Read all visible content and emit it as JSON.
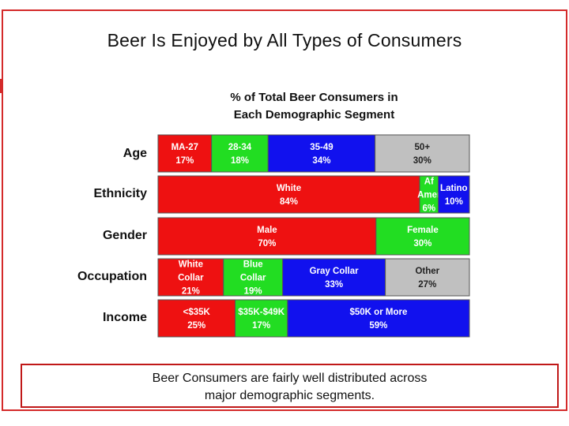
{
  "slide": {
    "title": "Beer Is Enjoyed by All Types of Consumers",
    "note_line1": "Beer Consumers are fairly well distributed across",
    "note_line2": "major demographic segments."
  },
  "colors": {
    "red": "#ee1111",
    "green": "#22dd22",
    "blue": "#1111ee",
    "gray": "#c0c0c0",
    "frame": "#d42a2a"
  },
  "chart_data": {
    "type": "bar",
    "stacking": "stacked-100-percent-horizontal",
    "title_line1": "% of Total Beer Consumers in",
    "title_line2": "Each Demographic Segment",
    "rows": [
      {
        "label": "Age",
        "segments": [
          {
            "lines": [
              "MA-27",
              "17%"
            ],
            "value": 17,
            "color": "red"
          },
          {
            "lines": [
              "28-34",
              "18%"
            ],
            "value": 18,
            "color": "green"
          },
          {
            "lines": [
              "35-49",
              "34%"
            ],
            "value": 34,
            "color": "blue"
          },
          {
            "lines": [
              "50+",
              "30%"
            ],
            "value": 30,
            "color": "gray"
          }
        ]
      },
      {
        "label": "Ethnicity",
        "segments": [
          {
            "lines": [
              "White",
              "84%"
            ],
            "value": 84,
            "color": "red"
          },
          {
            "lines": [
              "Af",
              "Amer",
              "6%"
            ],
            "value": 6,
            "color": "green"
          },
          {
            "lines": [
              "Latino",
              "10%"
            ],
            "value": 10,
            "color": "blue"
          }
        ]
      },
      {
        "label": "Gender",
        "segments": [
          {
            "lines": [
              "Male",
              "70%"
            ],
            "value": 70,
            "color": "red"
          },
          {
            "lines": [
              "Female",
              "30%"
            ],
            "value": 30,
            "color": "green"
          }
        ]
      },
      {
        "label": "Occupation",
        "segments": [
          {
            "lines": [
              "White",
              "Collar",
              "21%"
            ],
            "value": 21,
            "color": "red"
          },
          {
            "lines": [
              "Blue",
              "Collar",
              "19%"
            ],
            "value": 19,
            "color": "green"
          },
          {
            "lines": [
              "Gray Collar",
              "33%"
            ],
            "value": 33,
            "color": "blue"
          },
          {
            "lines": [
              "Other",
              "27%"
            ],
            "value": 27,
            "color": "gray"
          }
        ]
      },
      {
        "label": "Income",
        "segments": [
          {
            "lines": [
              "<$35K",
              "25%"
            ],
            "value": 25,
            "color": "red"
          },
          {
            "lines": [
              "$35K-$49K",
              "17%"
            ],
            "value": 17,
            "color": "green"
          },
          {
            "lines": [
              "$50K or More",
              "59%"
            ],
            "value": 59,
            "color": "blue"
          }
        ]
      }
    ]
  }
}
